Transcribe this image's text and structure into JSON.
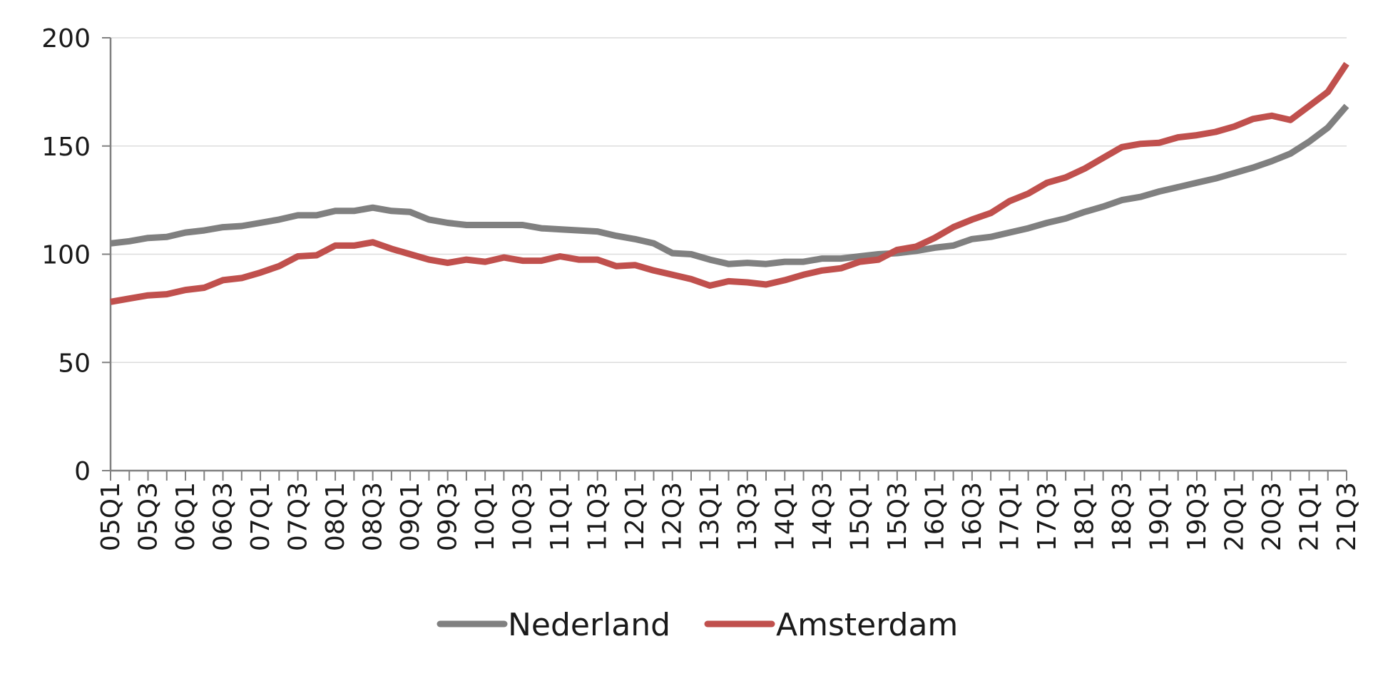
{
  "chart_data": {
    "type": "line",
    "title": "",
    "xlabel": "",
    "ylabel": "",
    "ylim": [
      0,
      200
    ],
    "yticks": [
      "0",
      "50",
      "100",
      "150",
      "200"
    ],
    "grid": true,
    "legend_position": "bottom",
    "x": [
      "05Q1",
      "05Q2",
      "05Q3",
      "05Q4",
      "06Q1",
      "06Q2",
      "06Q3",
      "06Q4",
      "07Q1",
      "07Q2",
      "07Q3",
      "07Q4",
      "08Q1",
      "08Q2",
      "08Q3",
      "08Q4",
      "09Q1",
      "09Q2",
      "09Q3",
      "09Q4",
      "10Q1",
      "10Q2",
      "10Q3",
      "10Q4",
      "11Q1",
      "11Q2",
      "11Q3",
      "11Q4",
      "12Q1",
      "12Q2",
      "12Q3",
      "12Q4",
      "13Q1",
      "13Q2",
      "13Q3",
      "13Q4",
      "14Q1",
      "14Q2",
      "14Q3",
      "14Q4",
      "15Q1",
      "15Q2",
      "15Q3",
      "15Q4",
      "16Q1",
      "16Q2",
      "16Q3",
      "16Q4",
      "17Q1",
      "17Q2",
      "17Q3",
      "17Q4",
      "18Q1",
      "18Q2",
      "18Q3",
      "18Q4",
      "19Q1",
      "19Q2",
      "19Q3",
      "19Q4",
      "20Q1",
      "20Q2",
      "20Q3",
      "20Q4",
      "21Q1",
      "21Q2",
      "21Q3"
    ],
    "tick_labels": [
      "05Q1",
      "05Q3",
      "06Q1",
      "06Q3",
      "07Q1",
      "07Q3",
      "08Q1",
      "08Q3",
      "09Q1",
      "09Q3",
      "10Q1",
      "10Q3",
      "11Q1",
      "11Q3",
      "12Q1",
      "12Q3",
      "13Q1",
      "13Q3",
      "14Q1",
      "14Q3",
      "15Q1",
      "15Q3",
      "16Q1",
      "16Q3",
      "17Q1",
      "17Q3",
      "18Q1",
      "18Q3",
      "19Q1",
      "19Q3",
      "20Q1",
      "20Q3",
      "21Q1",
      "21Q3"
    ],
    "series": [
      {
        "name": "Nederland",
        "color": "#808080",
        "values": [
          105,
          106,
          107.5,
          108,
          110,
          111,
          112.5,
          113,
          114.5,
          116,
          118,
          118,
          120,
          120,
          121.5,
          120,
          119.5,
          116,
          114.5,
          113.5,
          113.5,
          113.5,
          113.5,
          112,
          111.5,
          111,
          110.5,
          108.5,
          107,
          105,
          100.5,
          100,
          97.5,
          95.5,
          96,
          95.5,
          96.5,
          96.5,
          98,
          98,
          99,
          100,
          100.5,
          101.5,
          103,
          104,
          107,
          108,
          110,
          112,
          114.5,
          116.5,
          119.5,
          122,
          125,
          126.5,
          129,
          131,
          133,
          135,
          137.5,
          140,
          143,
          146.5,
          152,
          158.5,
          168.5
        ]
      },
      {
        "name": "Amsterdam",
        "color": "#c0504d",
        "values": [
          78,
          79.5,
          81,
          81.5,
          83.5,
          84.5,
          88,
          89,
          91.5,
          94.5,
          99,
          99.5,
          104,
          104,
          105.5,
          102.5,
          100,
          97.5,
          96,
          97.5,
          96.5,
          98.5,
          97,
          97,
          99,
          97.5,
          97.5,
          94.5,
          95,
          92.5,
          90.5,
          88.5,
          85.5,
          87.5,
          87,
          86,
          88,
          90.5,
          92.5,
          93.5,
          96.5,
          97.5,
          102,
          103.5,
          107.5,
          112.5,
          116,
          119,
          124.5,
          128,
          133,
          135.5,
          139.5,
          144.5,
          149.5,
          151,
          151.5,
          154,
          155,
          156.5,
          159,
          162.5,
          164,
          162,
          168.5,
          175,
          188
        ]
      }
    ]
  }
}
